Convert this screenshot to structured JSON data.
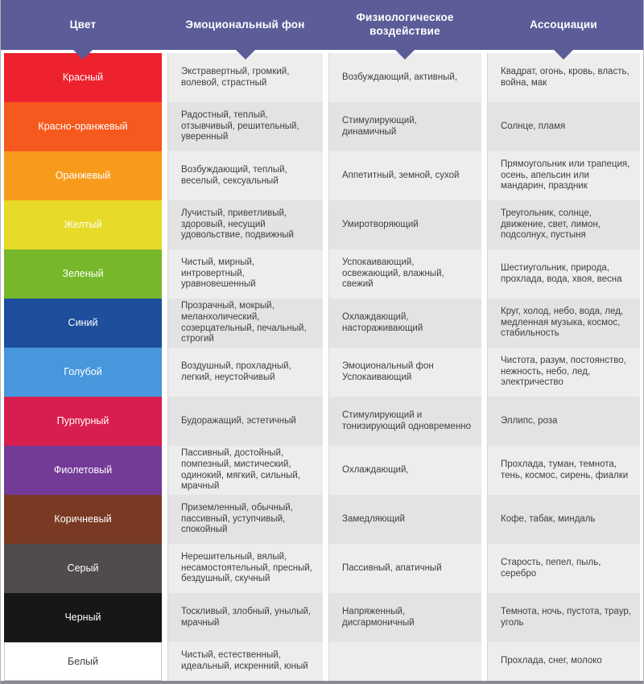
{
  "style": {
    "header_bg": "#5c5c99",
    "row_light": "#ededed",
    "row_dark": "#e3e3e3",
    "cell_text_color": "#3f3f3f",
    "frame_border": "#8a8a93"
  },
  "chart_data": {
    "type": "table",
    "columns": [
      "Цвет",
      "Эмоциональный фон",
      "Физиологическое воздействие",
      "Ассоциации"
    ],
    "rows": [
      {
        "name": "Красный",
        "swatch": "#ee212e",
        "label_color": "#ffffff",
        "emotional": "Экстравертный, громкий, волевой, страстный",
        "physiological": "Возбуждающий, активный,",
        "associations": "Квадрат, огонь, кровь, власть, война, мак"
      },
      {
        "name": "Красно-оранжевый",
        "swatch": "#f6591d",
        "label_color": "#ffffff",
        "emotional": "Радостный, теплый, отзывчивый, решительный, уверенный",
        "physiological": "Стимулирующий, динамичный",
        "associations": "Солнце, пламя"
      },
      {
        "name": "Оранжевый",
        "swatch": "#f89b1c",
        "label_color": "#ffffff",
        "emotional": "Возбуждающий, теплый, веселый, сексуальный",
        "physiological": "Аппетитный, земной, сухой",
        "associations": "Прямоугольник или трапеция, осень, апельсин или мандарин, праздник"
      },
      {
        "name": "Желтый",
        "swatch": "#e7da29",
        "label_color": "#ffffff",
        "emotional": "Лучистый, приветливый, здоровый, несущий удовольствие, подвижный",
        "physiological": "Умиротворяющий",
        "associations": "Треугольник, солнце, движение, свет, лимон, подсолнух, пустыня"
      },
      {
        "name": "Зеленый",
        "swatch": "#77b82a",
        "label_color": "#ffffff",
        "emotional": "Чистый, мирный, интровертный, уравновешенный",
        "physiological": "Успокаивающий, освежающий, влажный, свежий",
        "associations": "Шестиугольник, природа, прохлада, вода, хвоя, весна"
      },
      {
        "name": "Синий",
        "swatch": "#1e4e9c",
        "label_color": "#ffffff",
        "emotional": "Прозрачный, мокрый, меланхолический, созерцательный, печальный, строгий",
        "physiological": "Охлаждающий, настораживающий",
        "associations": "Круг, холод, небо, вода, лед, медленная музыка, космос, стабильность"
      },
      {
        "name": "Голубой",
        "swatch": "#4897dd",
        "label_color": "#ffffff",
        "emotional": "Воздушный, прохладный, легкий, неустойчивый",
        "physiological": "Эмоциональный фон\nУспокаивающий",
        "associations": "Чистота, разум, постоянство, нежность, небо, лед, электричество"
      },
      {
        "name": "Пурпурный",
        "swatch": "#d81e4e",
        "label_color": "#ffffff",
        "emotional": "Будоражащий, эстетичный",
        "physiological": "Стимулирующий и тонизирующий одновременно",
        "associations": "Эллипс, роза"
      },
      {
        "name": "Фиолетовый",
        "swatch": "#743a97",
        "label_color": "#ffffff",
        "emotional": "Пассивный, достойный, помпезный, мистический, одинокий, мягкий, сильный, мрачный",
        "physiological": "Охлаждающий,",
        "associations": "Прохлада, туман, темнота, тень, космос, сирень, фиалки"
      },
      {
        "name": "Коричневый",
        "swatch": "#793a23",
        "label_color": "#ffffff",
        "emotional": "Приземленный, обычный, пассивный, уступчивый, спокойный",
        "physiological": "Замедляющий",
        "associations": "Кофе, табак, миндаль"
      },
      {
        "name": "Серый",
        "swatch": "#504c4c",
        "label_color": "#ffffff",
        "emotional": "Нерешительный, вялый, несамостоятельный, пресный, бездушный, скучный",
        "physiological": "Пассивный, апатичный",
        "associations": "Старость, пепел, пыль, серебро"
      },
      {
        "name": "Черный",
        "swatch": "#171717",
        "label_color": "#ffffff",
        "emotional": "Тоскливый, злобный, унылый, мрачный",
        "physiological": "Напряженный, дисгармоничный",
        "associations": "Темнота, ночь, пустота, траур, уголь"
      },
      {
        "name": "Белый",
        "swatch": "#ffffff",
        "label_color": "#3f3f3f",
        "emotional": "Чистый, естественный, идеальный, искренний, юный",
        "physiological": "",
        "associations": "Прохлада, снег, молоко"
      }
    ]
  }
}
